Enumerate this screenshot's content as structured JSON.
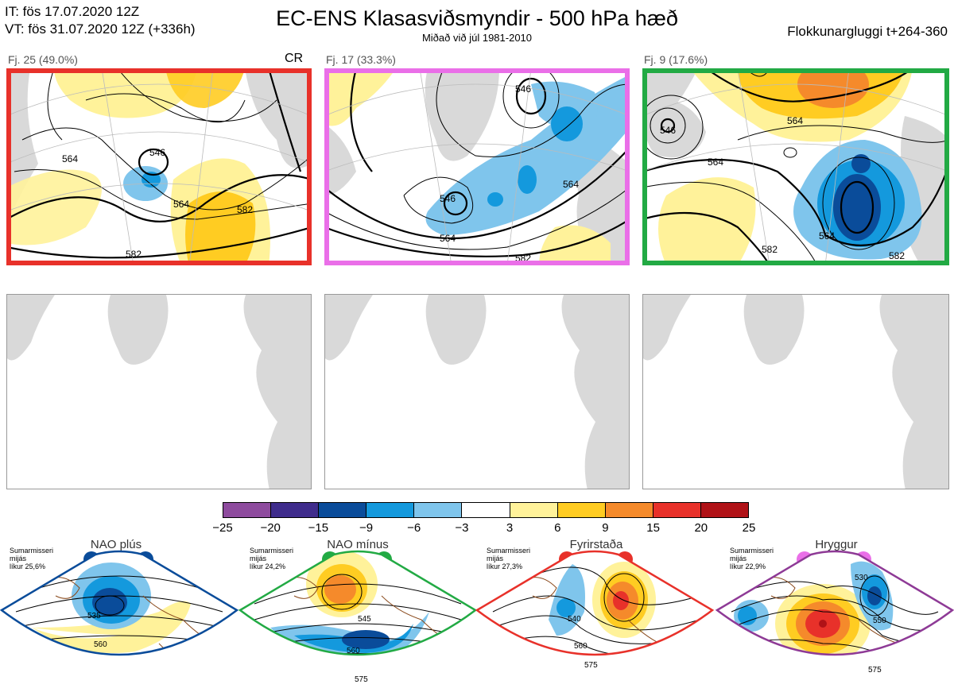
{
  "header": {
    "it_line": "IT: fös 17.07.2020 12Z",
    "vt_line": "VT: fös 31.07.2020 12Z  (+336h)",
    "title": "EC-ENS Klasasviðsmyndir - 500 hPa hæð",
    "subtitle": "Miðað við júl 1981-2010",
    "window": "Flokkunargluggi t+264-360"
  },
  "clusters": [
    {
      "label": "Fj. 25 (49.0%)",
      "frame_color": "#e8312a",
      "contours": [
        "546",
        "564",
        "582",
        "564",
        "582"
      ]
    },
    {
      "label": "Fj. 17 (33.3%)",
      "frame_color": "#ea6fe8",
      "contours": [
        "546",
        "564",
        "546",
        "564",
        "582"
      ]
    },
    {
      "label": "Fj. 9 (17.6%)",
      "frame_color": "#22aa44",
      "contours": [
        "564",
        "564",
        "546",
        "564",
        "582",
        "582"
      ]
    }
  ],
  "cr_label": "CR",
  "colorbar": {
    "colors": [
      "#8e4b9e",
      "#3f2c8c",
      "#0a4c9a",
      "#1499dd",
      "#7fc5ec",
      "#ffffff",
      "#fff29a",
      "#ffcc22",
      "#f58a2b",
      "#e8312a",
      "#b01217"
    ],
    "labels": [
      "-25",
      "-20",
      "-15",
      "-9",
      "-6",
      "-3",
      "3",
      "6",
      "9",
      "15",
      "20",
      "25"
    ]
  },
  "regimes": [
    {
      "title": "NAO plús",
      "note": [
        "Sumarmisseri",
        "mijás",
        "líkur 25,6%"
      ],
      "color": "#0a4c9a",
      "contours": [
        "535",
        "560"
      ]
    },
    {
      "title": "NAO mínus",
      "note": [
        "Sumarmisseri",
        "mijás",
        "líkur 24,2%"
      ],
      "color": "#22aa44",
      "contours": [
        "545",
        "560",
        "575"
      ]
    },
    {
      "title": "Fyrirstaða",
      "note": [
        "Sumarmisseri",
        "mijás",
        "líkur 27,3%"
      ],
      "color": "#e8312a",
      "contours": [
        "540",
        "560",
        "575"
      ]
    },
    {
      "title": "Hryggur",
      "note": [
        "Sumarmisseri",
        "mijás",
        "líkur 22,9%"
      ],
      "color": "#ea6fe8",
      "contours": [
        "530",
        "550",
        "575"
      ]
    }
  ]
}
